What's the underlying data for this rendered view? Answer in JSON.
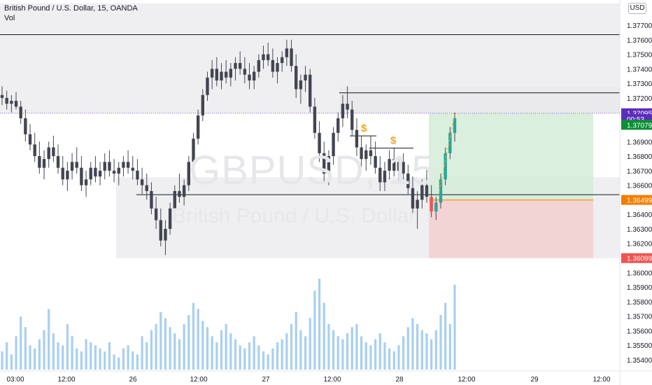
{
  "header": {
    "symbol_line": "British Pound / U.S. Dollar, 15, OANDA",
    "volume_label": "Vol",
    "currency_button": "USD"
  },
  "watermark": {
    "ticker": "GBPUSD, 15",
    "description": "British Pound / U.S. Dollar"
  },
  "colors": {
    "up": "#26a69a",
    "down": "#ef5350",
    "candle": "#434651",
    "volume": "#a8cff0",
    "zone_fill": "#e9e9ec",
    "profit_fill": "#d4ecd8",
    "loss_fill": "#f3d0d1",
    "entry_line": "#f5a623",
    "marker": "#f5a623",
    "badge_blue": "#2962ff",
    "badge_green": "#0a8f33",
    "badge_orange": "#f57c00",
    "badge_red": "#ef5350",
    "badge_purple": "#5b2fb8"
  },
  "chart_data": {
    "type": "candlestick",
    "y_ticks": [
      "1.37700",
      "1.37600",
      "1.37500",
      "1.37400",
      "1.37300",
      "1.37200",
      "1.36900",
      "1.36800",
      "1.36700",
      "1.36600",
      "1.36400",
      "1.36300",
      "1.36200",
      "1.36000",
      "1.35900",
      "1.35800",
      "1.35700",
      "1.35600",
      "1.35500",
      "1.35400"
    ],
    "x_ticks": [
      "03:00",
      "12:00",
      "26",
      "12:00",
      "27",
      "12:00",
      "28",
      "12:00",
      "29",
      "12:00"
    ],
    "ylim": [
      1.3535,
      1.3785
    ],
    "price_badges": [
      {
        "label": "1.37095",
        "value": 1.37095,
        "color": "badge_purple"
      },
      {
        "label": "00:53",
        "value": 1.37055,
        "color": "badge_purple"
      },
      {
        "label": "1.37079",
        "value": 1.37015,
        "color": "badge_green"
      },
      {
        "label": "1.36499",
        "value": 1.36499,
        "color": "badge_orange"
      },
      {
        "label": "1.36099",
        "value": 1.36099,
        "color": "badge_red"
      }
    ],
    "horizontal_lines": [
      {
        "value": 1.37635,
        "x_from": 0,
        "x_to": 886
      },
      {
        "value": 1.37235,
        "x_from": 485,
        "x_to": 886
      },
      {
        "value": 1.36535,
        "x_from": 195,
        "x_to": 886
      },
      {
        "value": 1.36939,
        "x_from": 500,
        "x_to": 538
      },
      {
        "value": 1.36855,
        "x_from": 528,
        "x_to": 591
      }
    ],
    "dotted_line": 1.37095,
    "zones": [
      {
        "top": 1.3785,
        "bottom": 1.37095,
        "x_from": 0,
        "x_to": 886
      },
      {
        "top": 1.37275,
        "bottom": 1.37095,
        "x_from": 485,
        "x_to": 886
      },
      {
        "top": 1.36655,
        "bottom": 1.36099,
        "x_from": 166,
        "x_to": 886
      }
    ],
    "position": {
      "entry": 1.36499,
      "target": 1.37095,
      "stop": 1.36099,
      "x_from": 613,
      "x_to": 848
    },
    "markers": [
      {
        "label": "$",
        "value": 1.3696
      },
      {
        "label": "$",
        "value": 1.36875
      }
    ],
    "ohlc": [
      [
        1.3722,
        1.3728,
        1.3715,
        1.372
      ],
      [
        1.372,
        1.3725,
        1.3712,
        1.3716
      ],
      [
        1.3716,
        1.3722,
        1.371,
        1.3718
      ],
      [
        1.3718,
        1.3724,
        1.3712,
        1.3714
      ],
      [
        1.3714,
        1.3718,
        1.3702,
        1.3706
      ],
      [
        1.3706,
        1.3712,
        1.369,
        1.3695
      ],
      [
        1.3695,
        1.3702,
        1.3684,
        1.3688
      ],
      [
        1.3688,
        1.3696,
        1.3676,
        1.368
      ],
      [
        1.368,
        1.369,
        1.3668,
        1.3672
      ],
      [
        1.3672,
        1.3684,
        1.3664,
        1.3678
      ],
      [
        1.3678,
        1.369,
        1.3672,
        1.3686
      ],
      [
        1.3686,
        1.3694,
        1.3676,
        1.368
      ],
      [
        1.368,
        1.3688,
        1.3668,
        1.3672
      ],
      [
        1.3672,
        1.368,
        1.366,
        1.3664
      ],
      [
        1.3664,
        1.3676,
        1.3656,
        1.367
      ],
      [
        1.367,
        1.3682,
        1.3664,
        1.3676
      ],
      [
        1.3676,
        1.3686,
        1.3668,
        1.3672
      ],
      [
        1.3672,
        1.368,
        1.3656,
        1.366
      ],
      [
        1.366,
        1.367,
        1.3652,
        1.3664
      ],
      [
        1.3664,
        1.3676,
        1.366,
        1.3672
      ],
      [
        1.3672,
        1.368,
        1.3662,
        1.3666
      ],
      [
        1.3666,
        1.3676,
        1.366,
        1.367
      ],
      [
        1.367,
        1.3682,
        1.3664,
        1.3676
      ],
      [
        1.3676,
        1.3684,
        1.3666,
        1.367
      ],
      [
        1.367,
        1.3678,
        1.3662,
        1.3668
      ],
      [
        1.3668,
        1.3676,
        1.366,
        1.3672
      ],
      [
        1.3672,
        1.368,
        1.3666,
        1.3676
      ],
      [
        1.3676,
        1.3684,
        1.3668,
        1.3672
      ],
      [
        1.3672,
        1.368,
        1.3664,
        1.367
      ],
      [
        1.367,
        1.3678,
        1.366,
        1.3664
      ],
      [
        1.3664,
        1.3672,
        1.3654,
        1.366
      ],
      [
        1.366,
        1.3668,
        1.365,
        1.3656
      ],
      [
        1.3656,
        1.3662,
        1.364,
        1.3644
      ],
      [
        1.3644,
        1.3652,
        1.363,
        1.3636
      ],
      [
        1.3636,
        1.3644,
        1.3618,
        1.3622
      ],
      [
        1.3622,
        1.3636,
        1.3612,
        1.363
      ],
      [
        1.363,
        1.3648,
        1.3626,
        1.3644
      ],
      [
        1.3644,
        1.366,
        1.364,
        1.3656
      ],
      [
        1.3656,
        1.3668,
        1.3648,
        1.3652
      ],
      [
        1.3652,
        1.3664,
        1.3646,
        1.366
      ],
      [
        1.366,
        1.368,
        1.3656,
        1.3676
      ],
      [
        1.3676,
        1.3696,
        1.3672,
        1.3692
      ],
      [
        1.3692,
        1.3712,
        1.3688,
        1.3708
      ],
      [
        1.3708,
        1.3726,
        1.3704,
        1.3722
      ],
      [
        1.3722,
        1.3738,
        1.3718,
        1.3734
      ],
      [
        1.3734,
        1.3746,
        1.3726,
        1.374
      ],
      [
        1.374,
        1.3748,
        1.3728,
        1.3732
      ],
      [
        1.3732,
        1.3744,
        1.3726,
        1.3738
      ],
      [
        1.3738,
        1.3746,
        1.373,
        1.3734
      ],
      [
        1.3734,
        1.3744,
        1.3728,
        1.374
      ],
      [
        1.374,
        1.3748,
        1.3732,
        1.3744
      ],
      [
        1.3744,
        1.3752,
        1.3736,
        1.374
      ],
      [
        1.374,
        1.3748,
        1.373,
        1.3736
      ],
      [
        1.3736,
        1.3744,
        1.3726,
        1.3732
      ],
      [
        1.3732,
        1.3742,
        1.3726,
        1.3738
      ],
      [
        1.3738,
        1.375,
        1.3734,
        1.3746
      ],
      [
        1.3746,
        1.3756,
        1.374,
        1.375
      ],
      [
        1.375,
        1.3758,
        1.3742,
        1.3746
      ],
      [
        1.3746,
        1.3754,
        1.3734,
        1.3738
      ],
      [
        1.3738,
        1.3748,
        1.373,
        1.3744
      ],
      [
        1.3744,
        1.3752,
        1.3738,
        1.3748
      ],
      [
        1.3748,
        1.376,
        1.3742,
        1.3754
      ],
      [
        1.3754,
        1.376,
        1.3738,
        1.3742
      ],
      [
        1.3742,
        1.375,
        1.372,
        1.3726
      ],
      [
        1.3726,
        1.3736,
        1.3716,
        1.3732
      ],
      [
        1.3732,
        1.3742,
        1.3724,
        1.3736
      ],
      [
        1.3736,
        1.374,
        1.371,
        1.3714
      ],
      [
        1.3714,
        1.372,
        1.3692,
        1.3696
      ],
      [
        1.3696,
        1.3704,
        1.3676,
        1.3682
      ],
      [
        1.3682,
        1.369,
        1.3662,
        1.3668
      ],
      [
        1.3668,
        1.3684,
        1.366,
        1.368
      ],
      [
        1.368,
        1.37,
        1.3674,
        1.3696
      ],
      [
        1.3696,
        1.371,
        1.369,
        1.3706
      ],
      [
        1.3706,
        1.3722,
        1.37,
        1.3716
      ],
      [
        1.3716,
        1.3728,
        1.3706,
        1.3712
      ],
      [
        1.3712,
        1.3718,
        1.3694,
        1.3698
      ],
      [
        1.3698,
        1.3706,
        1.368,
        1.3686
      ],
      [
        1.3686,
        1.3694,
        1.3672,
        1.3678
      ],
      [
        1.3678,
        1.3688,
        1.367,
        1.3684
      ],
      [
        1.3684,
        1.3694,
        1.3674,
        1.368
      ],
      [
        1.368,
        1.369,
        1.3668,
        1.3672
      ],
      [
        1.3672,
        1.368,
        1.3656,
        1.3662
      ],
      [
        1.3662,
        1.3676,
        1.3656,
        1.367
      ],
      [
        1.367,
        1.3684,
        1.3664,
        1.3678
      ],
      [
        1.3678,
        1.3686,
        1.3666,
        1.367
      ],
      [
        1.367,
        1.368,
        1.3662,
        1.3676
      ],
      [
        1.3676,
        1.3682,
        1.3664,
        1.3668
      ],
      [
        1.3668,
        1.3674,
        1.3654,
        1.3658
      ],
      [
        1.3658,
        1.3666,
        1.364,
        1.3644
      ],
      [
        1.3644,
        1.3656,
        1.363,
        1.365
      ],
      [
        1.365,
        1.3664,
        1.3644,
        1.366
      ],
      [
        1.366,
        1.3672,
        1.3648,
        1.3652
      ],
      [
        1.3652,
        1.366,
        1.3638,
        1.3642
      ],
      [
        1.3642,
        1.3652,
        1.3636,
        1.3648
      ],
      [
        1.3648,
        1.3668,
        1.3644,
        1.3664
      ],
      [
        1.3664,
        1.3686,
        1.366,
        1.3682
      ],
      [
        1.3682,
        1.37,
        1.3678,
        1.3696
      ],
      [
        1.3696,
        1.371,
        1.369,
        1.3706
      ]
    ],
    "volume": [
      12,
      18,
      10,
      22,
      35,
      28,
      16,
      14,
      20,
      26,
      40,
      24,
      18,
      16,
      30,
      22,
      14,
      12,
      20,
      18,
      16,
      14,
      12,
      18,
      10,
      8,
      14,
      16,
      12,
      10,
      22,
      18,
      26,
      30,
      38,
      34,
      28,
      24,
      20,
      30,
      36,
      44,
      40,
      32,
      28,
      22,
      18,
      26,
      30,
      24,
      20,
      16,
      14,
      18,
      22,
      16,
      12,
      10,
      14,
      18,
      20,
      24,
      30,
      38,
      26,
      22,
      34,
      52,
      60,
      44,
      30,
      26,
      22,
      20,
      24,
      28,
      30,
      22,
      18,
      16,
      20,
      24,
      18,
      14,
      12,
      16,
      22,
      28,
      34,
      30,
      26,
      24,
      20,
      26,
      36,
      44,
      30,
      56
    ]
  }
}
